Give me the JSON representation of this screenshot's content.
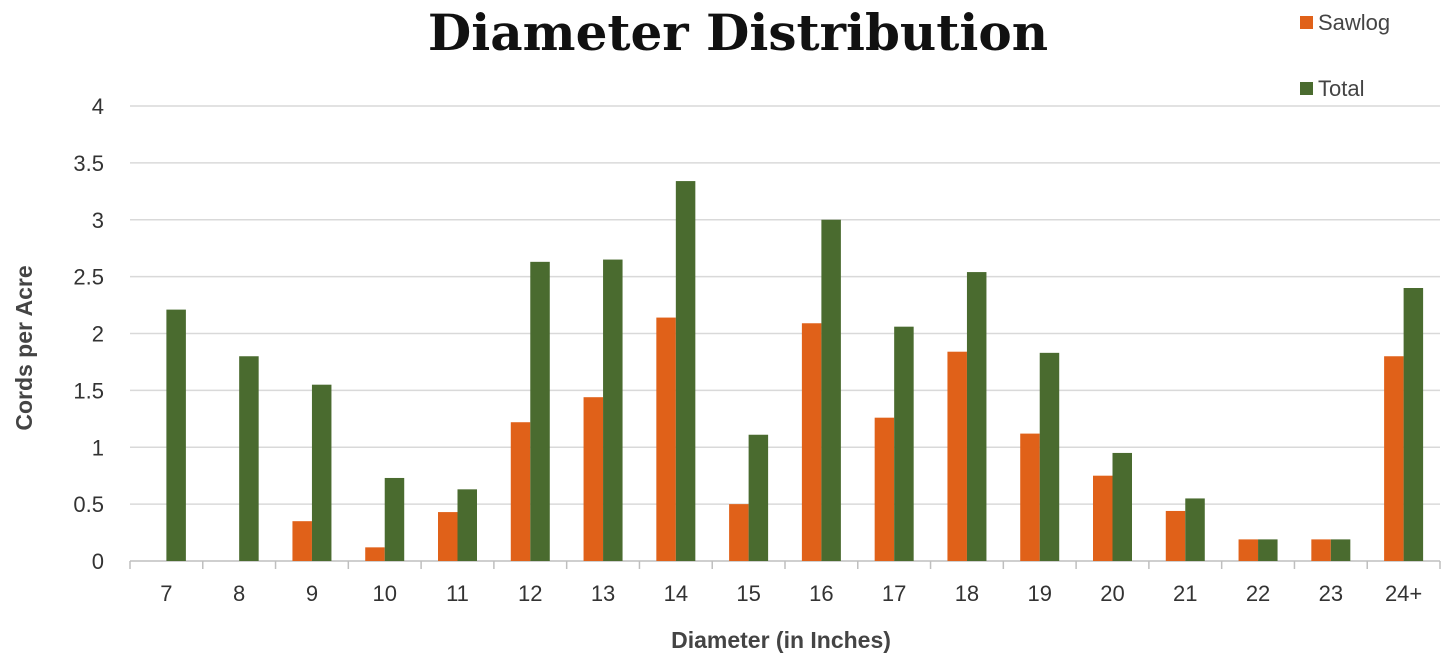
{
  "chart_data": {
    "type": "bar",
    "title": "Diameter Distribution",
    "xlabel": "Diameter (in Inches)",
    "ylabel": "Cords per Acre",
    "categories": [
      "7",
      "8",
      "9",
      "10",
      "11",
      "12",
      "13",
      "14",
      "15",
      "16",
      "17",
      "18",
      "19",
      "20",
      "21",
      "22",
      "23",
      "24+"
    ],
    "series": [
      {
        "name": "Sawlog",
        "color": "#e06119",
        "values": [
          0,
          0,
          0.35,
          0.12,
          0.43,
          1.22,
          1.44,
          2.14,
          0.5,
          2.09,
          1.26,
          1.84,
          1.12,
          0.75,
          0.44,
          0.19,
          0.19,
          1.8
        ]
      },
      {
        "name": "Total",
        "color": "#4a6b2f",
        "values": [
          2.21,
          1.8,
          1.55,
          0.73,
          0.63,
          2.63,
          2.65,
          3.34,
          1.11,
          3.0,
          2.06,
          2.54,
          1.83,
          0.95,
          0.55,
          0.19,
          0.19,
          2.4
        ]
      }
    ],
    "ylim": [
      0,
      4
    ],
    "yticks": [
      "0",
      "0.5",
      "1",
      "1.5",
      "2",
      "2.5",
      "3",
      "3.5",
      "4"
    ],
    "ytick_values": [
      0,
      0.5,
      1,
      1.5,
      2,
      2.5,
      3,
      3.5,
      4
    ],
    "grid": true,
    "legend_position": "top-right"
  }
}
